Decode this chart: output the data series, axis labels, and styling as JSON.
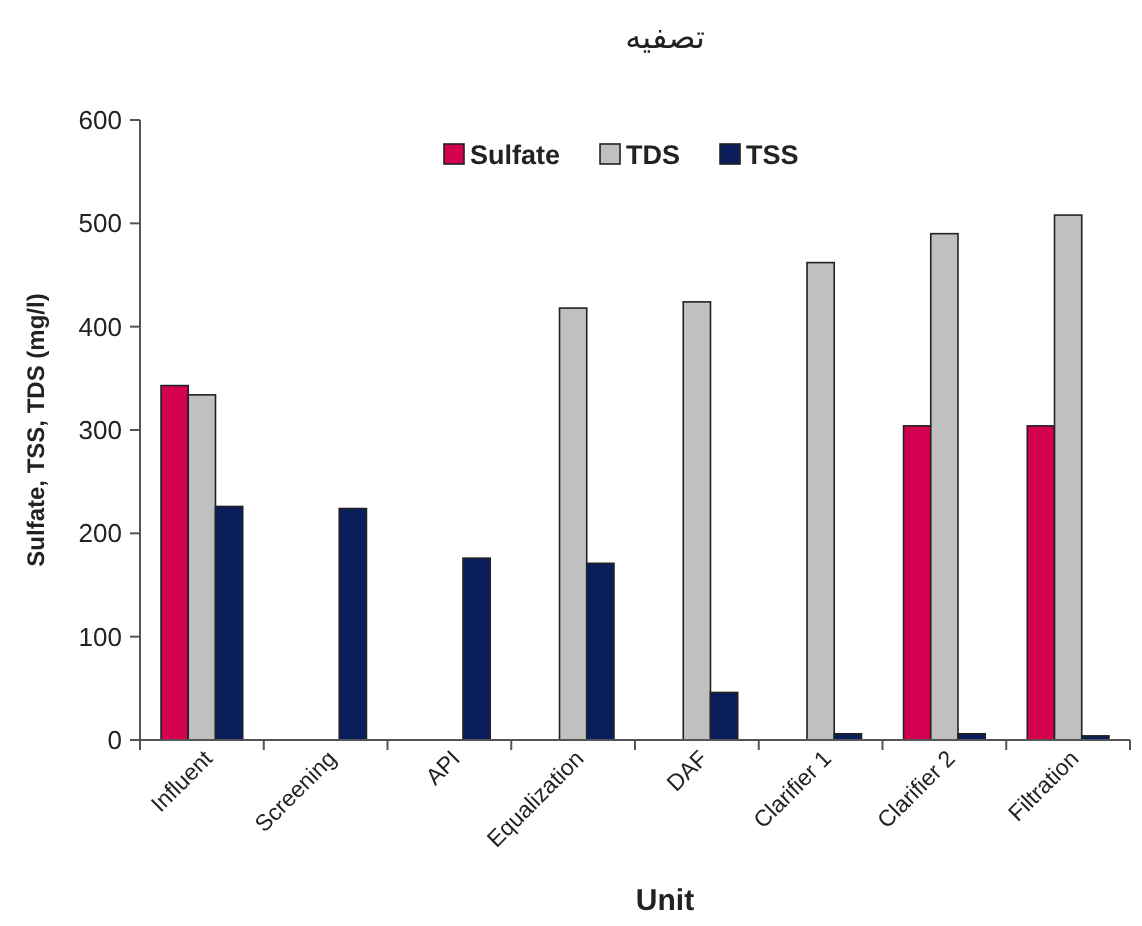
{
  "chart_data": {
    "type": "bar",
    "title": "تصفیه",
    "xlabel": "Unit",
    "ylabel": "Sulfate, TSS, TDS (mg/l)",
    "categories": [
      "Influent",
      "Screening",
      "API",
      "Equalization",
      "DAF",
      "Clarifier 1",
      "Clarifier 2",
      "Filtration"
    ],
    "series": [
      {
        "name": "Sulfate",
        "color": "#d40050",
        "values": [
          343,
          null,
          null,
          null,
          null,
          null,
          304,
          304
        ]
      },
      {
        "name": "TDS",
        "color": "#c0c0c0",
        "values": [
          334,
          null,
          null,
          418,
          424,
          462,
          490,
          508
        ]
      },
      {
        "name": "TSS",
        "color": "#0b1e5c",
        "values": [
          226,
          224,
          176,
          171,
          46,
          6,
          6,
          4
        ]
      }
    ],
    "ylim": [
      0,
      600
    ],
    "yticks": [
      0,
      100,
      200,
      300,
      400,
      500,
      600
    ],
    "grid": false,
    "legend": "top"
  }
}
